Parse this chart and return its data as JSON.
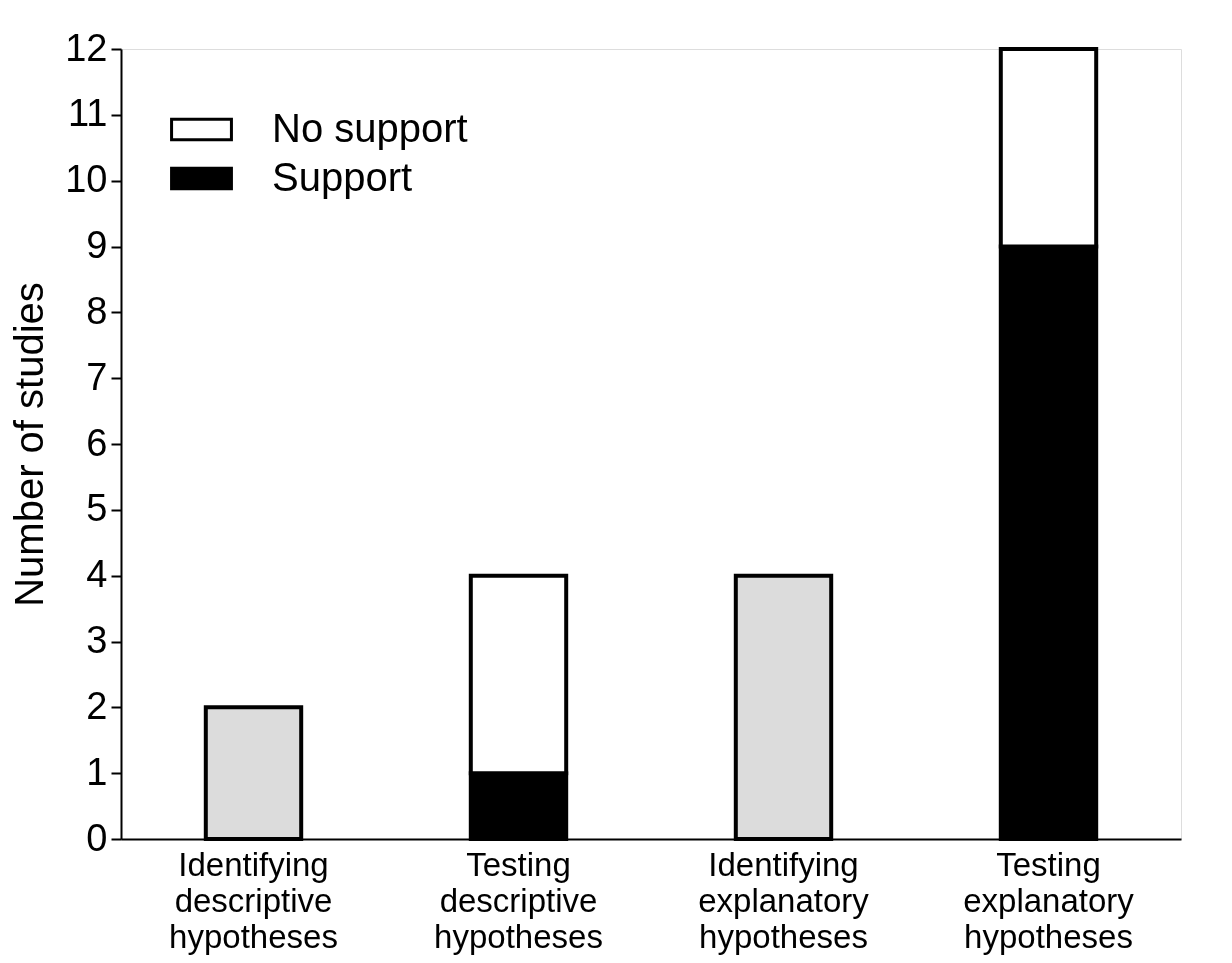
{
  "chart_data": {
    "type": "bar",
    "ylabel": "Number of studies",
    "categories": [
      "Identifying descriptive hypotheses",
      "Testing descriptive hypotheses",
      "Identifying explanatory hypotheses",
      "Testing explanatory hypotheses"
    ],
    "stacked": true,
    "series": [
      {
        "color": "#dcdcdc",
        "values": [
          2,
          null,
          4,
          null
        ]
      },
      {
        "name": "Support",
        "color": "#000000",
        "values": [
          null,
          1,
          null,
          9
        ]
      },
      {
        "name": "No support",
        "color": "#ffffff",
        "values": [
          null,
          3,
          null,
          3
        ]
      }
    ],
    "ylim": [
      0,
      12
    ],
    "yticks": [
      0,
      1,
      2,
      3,
      4,
      5,
      6,
      7,
      8,
      9,
      10,
      11,
      12
    ],
    "grid": false,
    "legend": "top left"
  }
}
